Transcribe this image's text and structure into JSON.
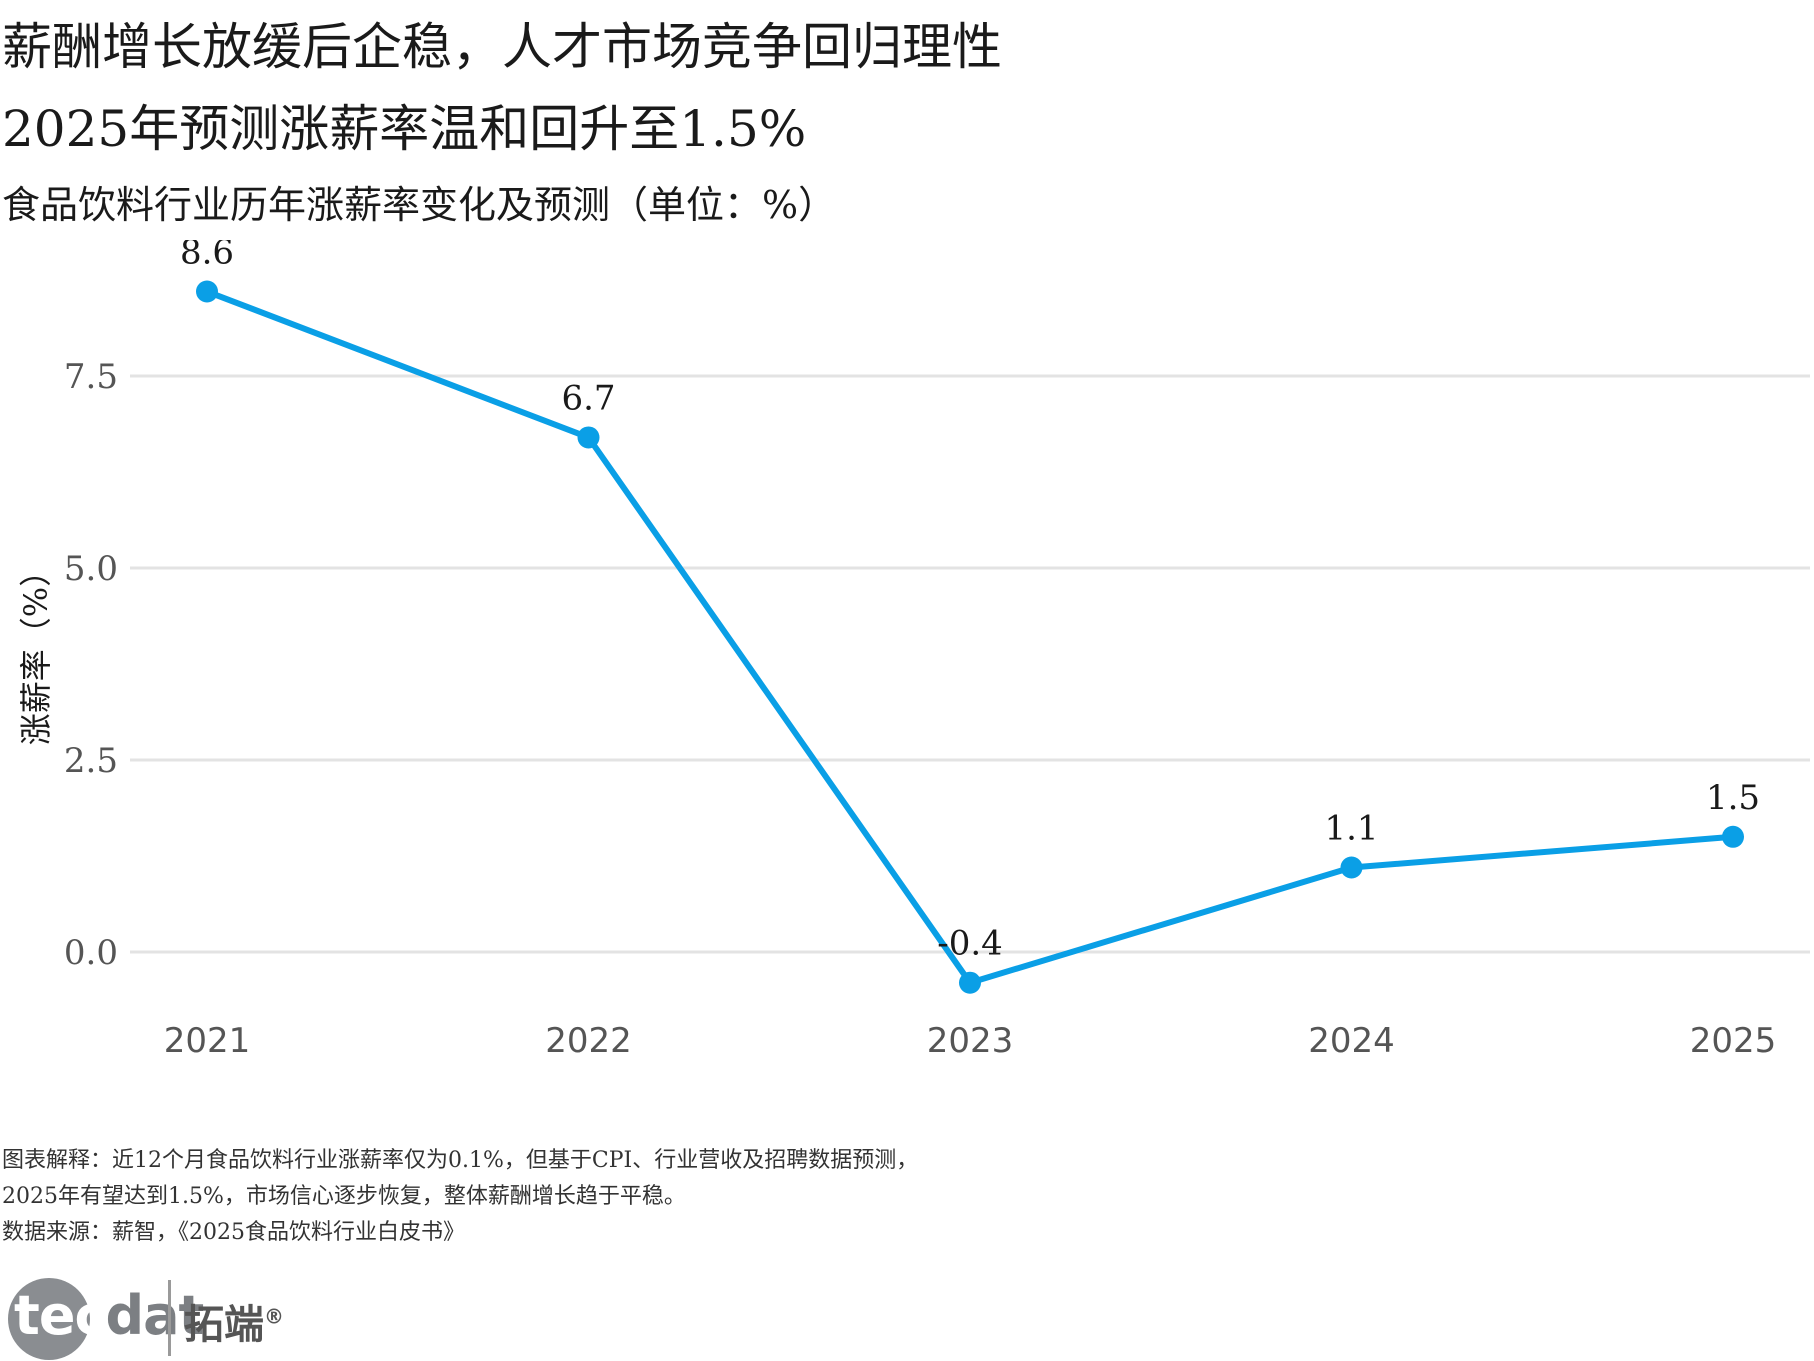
{
  "header": {
    "title_line1": "薪酬增长放缓后企稳，人才市场竞争回归理性",
    "title_line2": "2025年预测涨薪率温和回升至1.5%",
    "subtitle": "食品饮料行业历年涨薪率变化及预测（单位：%）"
  },
  "chart_data": {
    "type": "line",
    "categories": [
      "2021",
      "2022",
      "2023",
      "2024",
      "2025"
    ],
    "values": [
      8.6,
      6.7,
      -0.4,
      1.1,
      1.5
    ],
    "data_labels": [
      "8.6",
      "6.7",
      "-0.4",
      "1.1",
      "1.5"
    ],
    "ylabel": "涨薪率（%）",
    "yticks": [
      0.0,
      2.5,
      5.0,
      7.5
    ],
    "ytick_labels": [
      "0.0",
      "2.5",
      "5.0",
      "7.5"
    ],
    "ylim": [
      -0.8,
      9.2
    ],
    "grid": "horizontal",
    "line_color": "#0a9fe6",
    "grid_color": "#e3e3e3"
  },
  "footer": {
    "note_line1": "图表解释：近12个月食品饮料行业涨薪率仅为0.1%，但基于CPI、行业营收及招聘数据预测，",
    "note_line2": "2025年有望达到1.5%，市场信心逐步恢复，整体薪酬增长趋于平稳。",
    "source": "数据来源：薪智，《2025食品饮料行业白皮书》"
  },
  "logo": {
    "brand_part1": "tec",
    "brand_part2": "dat",
    "brand_cn": "拓端",
    "registered": "®"
  }
}
